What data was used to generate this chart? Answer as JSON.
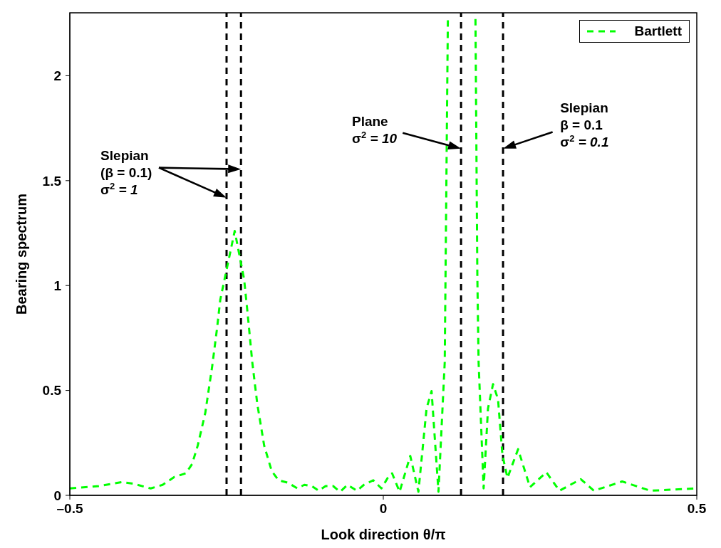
{
  "chart_data": {
    "type": "line",
    "xlabel": "Look direction θ/π",
    "ylabel": "Bearing spectrum",
    "xlim": [
      -0.5,
      0.5
    ],
    "xticks": [
      {
        "value": -0.5,
        "label": "–0.5"
      },
      0,
      0.5
    ],
    "ylim": [
      0,
      2.3
    ],
    "yticks": [
      0,
      0.5,
      1,
      1.5,
      2
    ],
    "grid": false,
    "legend": "top right",
    "line_style": "dashed",
    "marker": "none",
    "series": [
      {
        "name": "Bartlett",
        "color": "#00ff00",
        "x": [
          -0.5,
          -0.454,
          -0.417,
          -0.398,
          -0.371,
          -0.352,
          -0.333,
          -0.315,
          -0.305,
          -0.296,
          -0.284,
          -0.273,
          -0.265,
          -0.26,
          -0.237,
          -0.222,
          -0.216,
          -0.209,
          -0.201,
          -0.19,
          -0.178,
          -0.167,
          -0.152,
          -0.137,
          -0.126,
          -0.114,
          -0.103,
          -0.092,
          -0.08,
          -0.069,
          -0.057,
          -0.042,
          -0.031,
          -0.016,
          -0.003,
          0.007,
          0.014,
          0.026,
          0.043,
          0.056,
          0.069,
          0.077,
          0.088,
          0.098,
          0.103,
          0.118,
          0.147,
          0.15,
          0.152,
          0.16,
          0.167,
          0.175,
          0.183,
          0.19,
          0.198,
          0.215,
          0.234,
          0.26,
          0.281,
          0.315,
          0.336,
          0.381,
          0.426,
          0.5
        ],
        "values": [
          0.033,
          0.044,
          0.063,
          0.055,
          0.033,
          0.05,
          0.088,
          0.105,
          0.149,
          0.237,
          0.392,
          0.613,
          0.8,
          0.933,
          1.26,
          1.03,
          0.855,
          0.635,
          0.436,
          0.237,
          0.116,
          0.072,
          0.06,
          0.033,
          0.05,
          0.044,
          0.022,
          0.044,
          0.044,
          0.017,
          0.05,
          0.022,
          0.05,
          0.072,
          0.033,
          0.083,
          0.105,
          0.017,
          0.188,
          0.017,
          0.414,
          0.497,
          0.017,
          0.635,
          2.27,
          null,
          2.27,
          1.043,
          0.635,
          0.033,
          0.414,
          0.53,
          0.458,
          0.193,
          0.083,
          0.22,
          0.039,
          0.11,
          0.022,
          0.077,
          0.022,
          0.066,
          0.022,
          0.033
        ]
      }
    ],
    "ref_lines": [
      {
        "axis": "x",
        "value": -0.25,
        "color": "#000000",
        "line_style": "dashed"
      },
      {
        "axis": "x",
        "value": -0.227,
        "color": "#000000",
        "line_style": "dashed"
      },
      {
        "axis": "x",
        "value": 0.124,
        "color": "#000000",
        "line_style": "dashed"
      },
      {
        "axis": "x",
        "value": 0.191,
        "color": "#000000",
        "line_style": "dashed"
      }
    ],
    "annotations": [
      "Slepian\n(β = 0.1)\nσ$^{2}$ = 1",
      "Plane\nσ$^{2}$ = 10",
      "Slepian\nβ = 0.1\nσ$^{2}$ = 0.1"
    ]
  }
}
